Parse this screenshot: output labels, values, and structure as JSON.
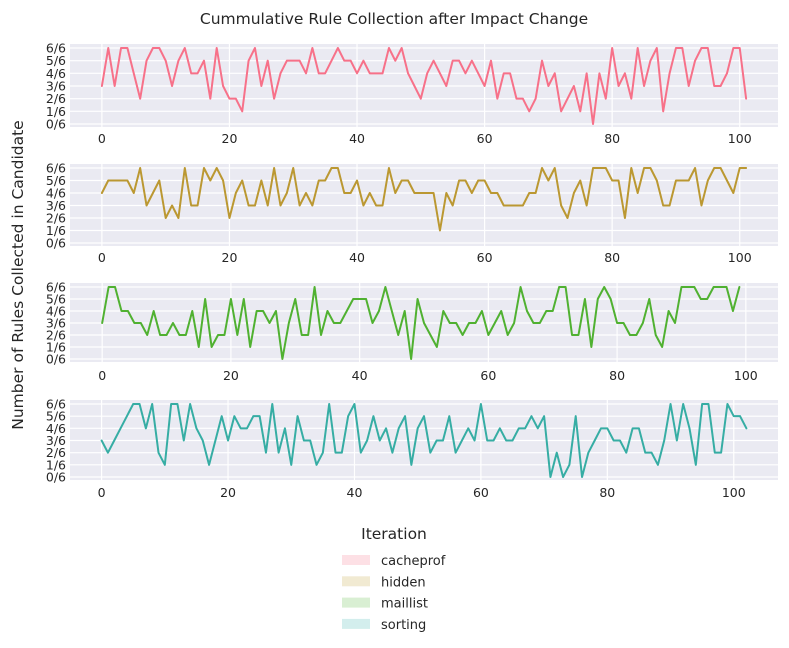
{
  "chart_data": {
    "type": "line",
    "title": "Cummulative Rule Collection after Impact Change",
    "xlabel": "Iteration",
    "ylabel": "Number of Rules Collected in Candidate",
    "ytick_labels": [
      "0/6",
      "1/6",
      "2/6",
      "3/6",
      "4/6",
      "5/6",
      "6/6"
    ],
    "ylim": [
      0,
      6
    ],
    "xticks": [
      0,
      20,
      40,
      60,
      80,
      100
    ],
    "grid": true,
    "legend_position": "bottom-center",
    "panels": [
      {
        "name": "cacheprof",
        "color": "#f77189",
        "fill": "#fde0e5",
        "xlim": [
          -5,
          106
        ],
        "values": [
          3,
          6,
          3,
          6,
          6,
          4,
          2,
          5,
          6,
          6,
          5,
          3,
          5,
          6,
          4,
          4,
          5,
          2,
          6,
          3,
          2,
          2,
          1,
          5,
          6,
          3,
          5,
          2,
          4,
          5,
          5,
          5,
          4,
          6,
          4,
          4,
          5,
          6,
          5,
          5,
          4,
          5,
          4,
          4,
          4,
          6,
          5,
          6,
          4,
          3,
          2,
          4,
          5,
          4,
          3,
          5,
          5,
          4,
          5,
          4,
          3,
          5,
          2,
          4,
          4,
          2,
          2,
          1,
          2,
          5,
          3,
          4,
          1,
          2,
          3,
          1,
          4,
          0,
          4,
          2,
          6,
          3,
          4,
          2,
          6,
          3,
          5,
          6,
          1,
          4,
          6,
          6,
          3,
          5,
          6,
          6,
          3,
          3,
          4,
          6,
          6,
          2
        ]
      },
      {
        "name": "hidden",
        "color": "#bb9832",
        "fill": "#f1ead2",
        "xlim": [
          -5,
          106
        ],
        "values": [
          4,
          5,
          5,
          5,
          5,
          4,
          6,
          3,
          4,
          5,
          2,
          3,
          2,
          6,
          3,
          3,
          6,
          5,
          6,
          5,
          2,
          4,
          5,
          3,
          3,
          5,
          3,
          6,
          3,
          4,
          6,
          3,
          4,
          3,
          5,
          5,
          6,
          6,
          4,
          4,
          5,
          3,
          4,
          3,
          3,
          6,
          4,
          5,
          5,
          4,
          4,
          4,
          4,
          1,
          4,
          3,
          5,
          5,
          4,
          5,
          5,
          4,
          4,
          3,
          3,
          3,
          3,
          4,
          4,
          6,
          5,
          6,
          3,
          2,
          4,
          5,
          3,
          6,
          6,
          6,
          5,
          5,
          2,
          6,
          4,
          6,
          6,
          5,
          3,
          3,
          5,
          5,
          5,
          6,
          3,
          5,
          6,
          6,
          5,
          4,
          6,
          6
        ]
      },
      {
        "name": "maillist",
        "color": "#50b131",
        "fill": "#d9efd3",
        "xlim": [
          -5,
          105
        ],
        "values": [
          3,
          6,
          6,
          4,
          4,
          3,
          3,
          2,
          4,
          2,
          2,
          3,
          2,
          2,
          4,
          1,
          5,
          1,
          2,
          2,
          5,
          2,
          5,
          1,
          4,
          4,
          3,
          4,
          0,
          3,
          5,
          2,
          2,
          6,
          2,
          4,
          3,
          3,
          4,
          5,
          5,
          5,
          3,
          4,
          6,
          4,
          2,
          4,
          0,
          5,
          3,
          2,
          1,
          4,
          3,
          3,
          2,
          3,
          3,
          4,
          2,
          3,
          4,
          2,
          3,
          6,
          4,
          3,
          3,
          4,
          4,
          6,
          6,
          2,
          2,
          5,
          1,
          5,
          6,
          5,
          3,
          3,
          2,
          2,
          3,
          5,
          2,
          1,
          4,
          3,
          6,
          6,
          6,
          5,
          5,
          6,
          6,
          6,
          4,
          6
        ]
      },
      {
        "name": "sorting",
        "color": "#36ada4",
        "fill": "#d3eeed",
        "xlim": [
          -5,
          107
        ],
        "values": [
          3,
          2,
          3,
          4,
          5,
          6,
          6,
          4,
          6,
          2,
          1,
          6,
          6,
          3,
          6,
          4,
          3,
          1,
          3,
          5,
          3,
          5,
          4,
          4,
          5,
          5,
          2,
          6,
          2,
          4,
          1,
          5,
          3,
          3,
          1,
          2,
          6,
          2,
          2,
          5,
          6,
          2,
          3,
          5,
          3,
          4,
          2,
          4,
          5,
          1,
          4,
          5,
          2,
          3,
          3,
          5,
          2,
          3,
          4,
          3,
          6,
          3,
          3,
          4,
          3,
          3,
          4,
          4,
          5,
          4,
          5,
          0,
          2,
          0,
          1,
          5,
          0,
          2,
          3,
          4,
          4,
          3,
          3,
          2,
          4,
          4,
          2,
          2,
          1,
          3,
          6,
          3,
          6,
          4,
          1,
          6,
          6,
          2,
          2,
          6,
          5,
          5,
          4
        ]
      }
    ]
  }
}
